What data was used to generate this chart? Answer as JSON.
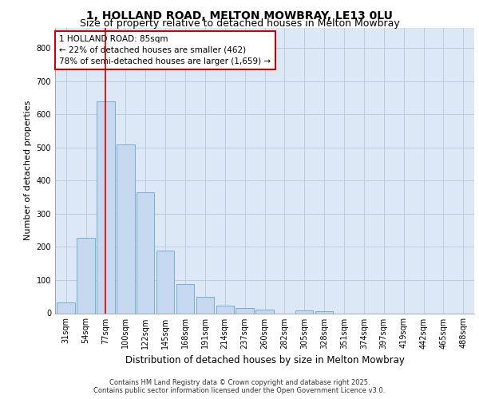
{
  "title_line1": "1, HOLLAND ROAD, MELTON MOWBRAY, LE13 0LU",
  "title_line2": "Size of property relative to detached houses in Melton Mowbray",
  "xlabel": "Distribution of detached houses by size in Melton Mowbray",
  "ylabel": "Number of detached properties",
  "categories": [
    "31sqm",
    "54sqm",
    "77sqm",
    "100sqm",
    "122sqm",
    "145sqm",
    "168sqm",
    "191sqm",
    "214sqm",
    "237sqm",
    "260sqm",
    "282sqm",
    "305sqm",
    "328sqm",
    "351sqm",
    "374sqm",
    "397sqm",
    "419sqm",
    "442sqm",
    "465sqm",
    "488sqm"
  ],
  "values": [
    32,
    228,
    638,
    508,
    365,
    190,
    88,
    50,
    22,
    15,
    12,
    0,
    8,
    7,
    0,
    0,
    0,
    0,
    0,
    0,
    0
  ],
  "bar_color": "#c5d8f0",
  "bar_edge_color": "#7aadd4",
  "vline_x": 2,
  "vline_color": "#cc0000",
  "annotation_text": "1 HOLLAND ROAD: 85sqm\n← 22% of detached houses are smaller (462)\n78% of semi-detached houses are larger (1,659) →",
  "annotation_box_facecolor": "#ffffff",
  "annotation_box_edgecolor": "#cc0000",
  "ylim": [
    0,
    860
  ],
  "yticks": [
    0,
    100,
    200,
    300,
    400,
    500,
    600,
    700,
    800
  ],
  "grid_color": "#b8c8dc",
  "background_color": "#dce8f5",
  "footer": "Contains HM Land Registry data © Crown copyright and database right 2025.\nContains public sector information licensed under the Open Government Licence v3.0.",
  "title_fontsize": 10,
  "subtitle_fontsize": 9,
  "xlabel_fontsize": 8.5,
  "ylabel_fontsize": 8,
  "tick_fontsize": 7,
  "footer_fontsize": 6,
  "ann_fontsize": 7.5
}
